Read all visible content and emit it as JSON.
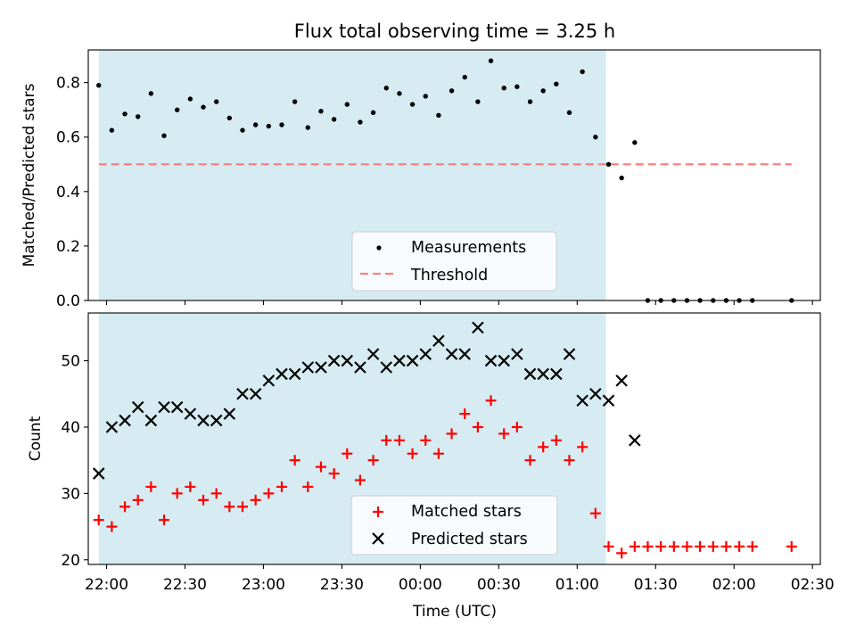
{
  "title": "Flux total observing time = 3.25 h",
  "chart_data": [
    {
      "type": "scatter",
      "ylabel": "Matched/Predicted stars",
      "ylim": [
        0.0,
        0.92
      ],
      "yticks": [
        "0.0",
        "0.2",
        "0.4",
        "0.6",
        "0.8"
      ],
      "ytick_values": [
        0.0,
        0.2,
        0.4,
        0.6,
        0.8
      ],
      "xlim": [
        "21:53",
        "02:33"
      ],
      "shaded_interval": [
        "21:57",
        "01:11"
      ],
      "legend_position": "lower-center",
      "threshold": {
        "name": "Threshold",
        "value": 0.5,
        "x": [
          "21:57",
          "02:22"
        ],
        "color": "#ff7f7f",
        "style": "dashed"
      },
      "series": [
        {
          "name": "Measurements",
          "marker": "dot",
          "color": "#000000",
          "x": [
            "21:57",
            "22:02",
            "22:07",
            "22:12",
            "22:17",
            "22:22",
            "22:27",
            "22:32",
            "22:37",
            "22:42",
            "22:47",
            "22:52",
            "22:57",
            "23:02",
            "23:07",
            "23:12",
            "23:17",
            "23:22",
            "23:27",
            "23:32",
            "23:37",
            "23:42",
            "23:47",
            "23:52",
            "23:57",
            "00:02",
            "00:07",
            "00:12",
            "00:17",
            "00:22",
            "00:27",
            "00:32",
            "00:37",
            "00:42",
            "00:47",
            "00:52",
            "00:57",
            "01:02",
            "01:07",
            "01:12",
            "01:17",
            "01:22",
            "01:27",
            "01:32",
            "01:37",
            "01:42",
            "01:47",
            "01:52",
            "01:57",
            "02:02",
            "02:07",
            "02:22"
          ],
          "values": [
            0.79,
            0.625,
            0.685,
            0.675,
            0.76,
            0.605,
            0.7,
            0.74,
            0.71,
            0.73,
            0.67,
            0.625,
            0.645,
            0.64,
            0.645,
            0.73,
            0.635,
            0.695,
            0.665,
            0.72,
            0.655,
            0.69,
            0.78,
            0.76,
            0.72,
            0.75,
            0.68,
            0.77,
            0.82,
            0.73,
            0.88,
            0.78,
            0.785,
            0.73,
            0.77,
            0.795,
            0.69,
            0.84,
            0.6,
            0.5,
            0.45,
            0.58,
            0.0,
            0.0,
            0.0,
            0.0,
            0.0,
            0.0,
            0.0,
            0.0,
            0.0,
            0.0
          ]
        }
      ]
    },
    {
      "type": "scatter",
      "ylabel": "Count",
      "xlabel": "Time (UTC)",
      "ylim": [
        19.3,
        57.2
      ],
      "yticks": [
        "20",
        "30",
        "40",
        "50"
      ],
      "ytick_values": [
        20,
        30,
        40,
        50
      ],
      "xlim": [
        "21:53",
        "02:33"
      ],
      "xticks": [
        "22:00",
        "22:30",
        "23:00",
        "23:30",
        "00:00",
        "00:30",
        "01:00",
        "01:30",
        "02:00",
        "02:30"
      ],
      "xtick_values": [
        "22:00",
        "22:30",
        "23:00",
        "23:30",
        "00:00",
        "00:30",
        "01:00",
        "01:30",
        "02:00",
        "02:30"
      ],
      "shaded_interval": [
        "21:57",
        "01:11"
      ],
      "legend_position": "lower-center",
      "series": [
        {
          "name": "Matched stars",
          "marker": "plus",
          "color": "#ff0000",
          "x": [
            "21:57",
            "22:02",
            "22:07",
            "22:12",
            "22:17",
            "22:22",
            "22:27",
            "22:32",
            "22:37",
            "22:42",
            "22:47",
            "22:52",
            "22:57",
            "23:02",
            "23:07",
            "23:12",
            "23:17",
            "23:22",
            "23:27",
            "23:32",
            "23:37",
            "23:42",
            "23:47",
            "23:52",
            "23:57",
            "00:02",
            "00:07",
            "00:12",
            "00:17",
            "00:22",
            "00:27",
            "00:32",
            "00:37",
            "00:42",
            "00:47",
            "00:52",
            "00:57",
            "01:02",
            "01:07",
            "01:12",
            "01:17",
            "01:22",
            "01:27",
            "01:32",
            "01:37",
            "01:42",
            "01:47",
            "01:52",
            "01:57",
            "02:02",
            "02:07",
            "02:22"
          ],
          "values": [
            26,
            25,
            28,
            29,
            31,
            26,
            30,
            31,
            29,
            30,
            28,
            28,
            29,
            30,
            31,
            35,
            31,
            34,
            33,
            36,
            32,
            35,
            38,
            38,
            36,
            38,
            36,
            39,
            42,
            40,
            44,
            39,
            40,
            35,
            37,
            38,
            35,
            37,
            27,
            22,
            21,
            22,
            22,
            22,
            22,
            22,
            22,
            22,
            22,
            22,
            22,
            22
          ]
        },
        {
          "name": "Predicted stars",
          "marker": "x",
          "color": "#000000",
          "x": [
            "21:57",
            "22:02",
            "22:07",
            "22:12",
            "22:17",
            "22:22",
            "22:27",
            "22:32",
            "22:37",
            "22:42",
            "22:47",
            "22:52",
            "22:57",
            "23:02",
            "23:07",
            "23:12",
            "23:17",
            "23:22",
            "23:27",
            "23:32",
            "23:37",
            "23:42",
            "23:47",
            "23:52",
            "23:57",
            "00:02",
            "00:07",
            "00:12",
            "00:17",
            "00:22",
            "00:27",
            "00:32",
            "00:37",
            "00:42",
            "00:47",
            "00:52",
            "00:57",
            "01:02",
            "01:07",
            "01:12",
            "01:17",
            "01:22"
          ],
          "values": [
            33,
            40,
            41,
            43,
            41,
            43,
            43,
            42,
            41,
            41,
            42,
            45,
            45,
            47,
            48,
            48,
            49,
            49,
            50,
            50,
            49,
            51,
            49,
            50,
            50,
            51,
            53,
            51,
            51,
            55,
            50,
            50,
            51,
            48,
            48,
            48,
            51,
            44,
            45,
            44,
            47,
            38
          ]
        }
      ]
    }
  ]
}
